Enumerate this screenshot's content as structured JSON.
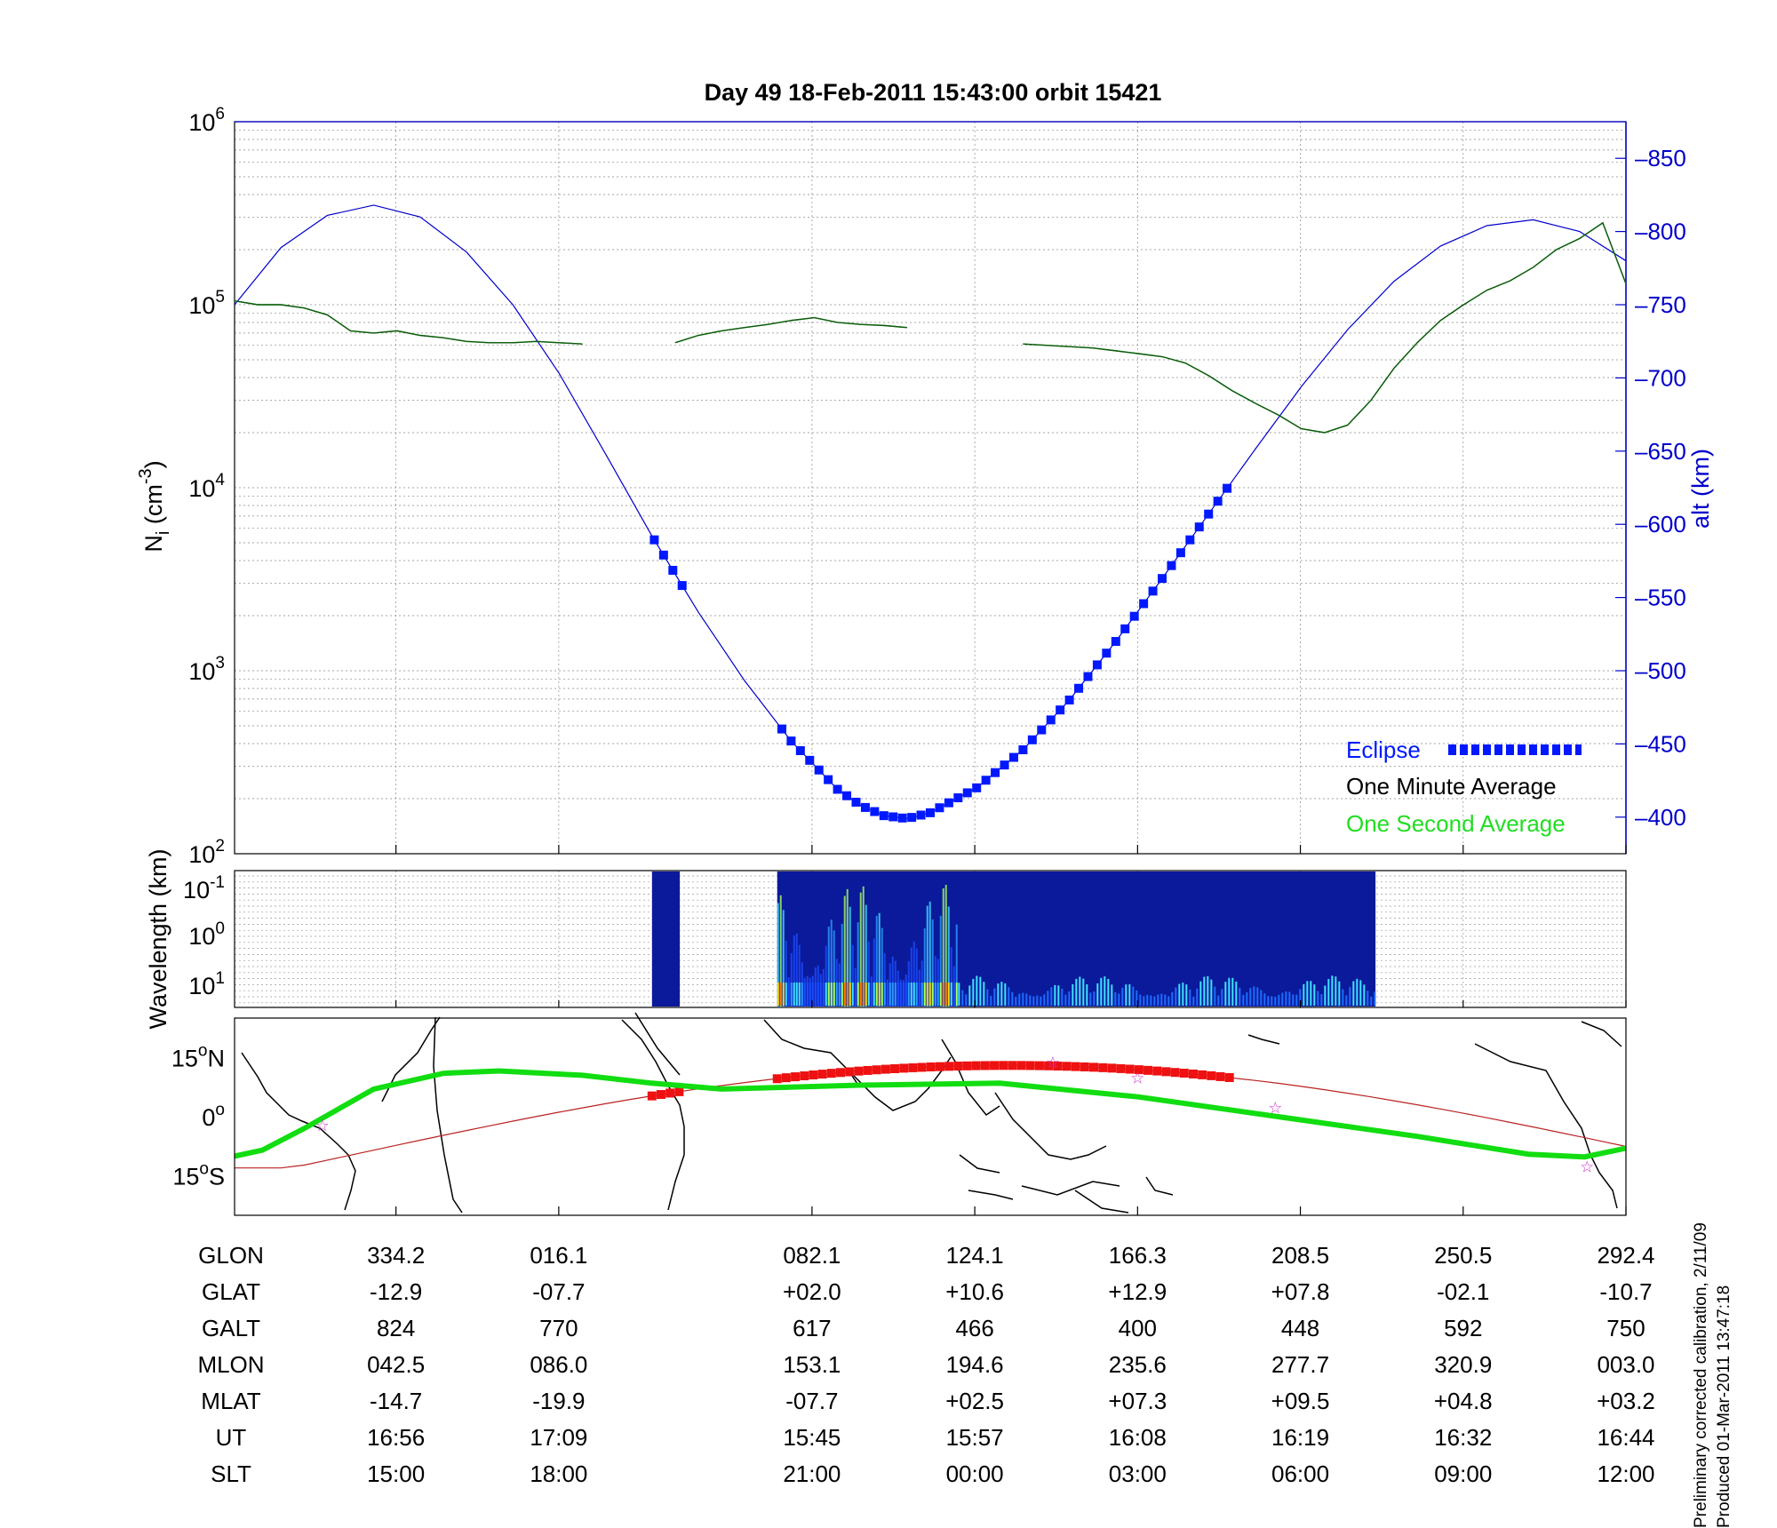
{
  "chart_data": [
    {
      "type": "line",
      "title": "Day 49  18-Feb-2011 15:43:00   orbit 15421",
      "ylabel_base": "N",
      "ylabel_sub": "i",
      "ylabel_unit": "(cm",
      "ylabel_exp": "-3",
      "ylabel_close": ")",
      "y_scale": "log",
      "ylim": [
        100,
        1000000
      ],
      "yticks": [
        {
          "base": "10",
          "exp": "2",
          "value": 100
        },
        {
          "base": "10",
          "exp": "3",
          "value": 1000
        },
        {
          "base": "10",
          "exp": "4",
          "value": 10000
        },
        {
          "base": "10",
          "exp": "5",
          "value": 100000
        },
        {
          "base": "10",
          "exp": "6",
          "value": 1000000
        }
      ],
      "y2label": "alt (km)",
      "y2lim": [
        375,
        875
      ],
      "y2ticks": [
        "400",
        "450",
        "500",
        "550",
        "600",
        "650",
        "700",
        "750",
        "800",
        "850"
      ],
      "y2_color": "#0000cc",
      "grid": true,
      "legend_position": "bottom-right",
      "legend": [
        {
          "label": "Eclipse",
          "color": "#0018ff",
          "style": "thick-dashed"
        },
        {
          "label": "One Minute Average",
          "color": "#000000",
          "style": "text"
        },
        {
          "label": "One Second Average",
          "color": "#22dd22",
          "style": "text"
        }
      ],
      "series": [
        {
          "role": "altitude",
          "color": "#0000cc",
          "x": [
            0,
            20,
            40,
            60,
            80,
            100,
            120,
            140,
            160,
            180,
            200,
            220,
            240,
            260,
            270,
            280,
            290,
            300,
            320,
            340,
            360,
            380,
            400,
            420,
            440,
            460,
            480,
            500,
            520,
            540,
            560,
            580,
            600
          ],
          "y": [
            750,
            789,
            811,
            818,
            810,
            786,
            750,
            703,
            648,
            592,
            540,
            493,
            452,
            419,
            408,
            401,
            399,
            403,
            420,
            446,
            480,
            520,
            563,
            607,
            651,
            694,
            733,
            766,
            790,
            804,
            808,
            800,
            780
          ]
        },
        {
          "role": "density-1min",
          "color": "#000000",
          "x": [
            0,
            10,
            20,
            30,
            40,
            50,
            60,
            70,
            80,
            90,
            100,
            110,
            120,
            130,
            140,
            150,
            155,
            160,
            170,
            180,
            190,
            200,
            210,
            220,
            230,
            240,
            250,
            260,
            270,
            280,
            290,
            300,
            310,
            320,
            330,
            340,
            350,
            360,
            370,
            380,
            390,
            400,
            410,
            420,
            430,
            440,
            450,
            460,
            470,
            480,
            490,
            500,
            510,
            520,
            530,
            540,
            550,
            560,
            570,
            580,
            590,
            600
          ],
          "y": [
            105000,
            100000,
            100000,
            96000,
            88000,
            72000,
            70000,
            72000,
            68000,
            66000,
            63000,
            62000,
            62000,
            63000,
            62000,
            61000,
            null,
            null,
            null,
            null,
            62000,
            68000,
            72000,
            75000,
            78000,
            82000,
            85000,
            80000,
            78000,
            77000,
            75000,
            null,
            null,
            null,
            null,
            61000,
            60000,
            59000,
            58000,
            56000,
            54000,
            52000,
            48000,
            41000,
            34000,
            29000,
            25000,
            21000,
            20000,
            22000,
            30000,
            45000,
            62000,
            82000,
            100000,
            120000,
            135000,
            160000,
            200000,
            230000,
            280000,
            130000
          ]
        }
      ]
    },
    {
      "type": "heatmap",
      "ylabel": "Wavelength (km)",
      "y_scale": "log",
      "yticks": [
        {
          "base": "10",
          "exp": "-1"
        },
        {
          "base": "10",
          "exp": "0"
        },
        {
          "base": "10",
          "exp": "1"
        }
      ],
      "colormap": "jet",
      "data_segments": [
        [
          0.3,
          0.32
        ],
        [
          0.39,
          0.82
        ]
      ],
      "intense_band": [
        0.39,
        0.52
      ]
    },
    {
      "type": "scatter",
      "subtype": "map-ground-track",
      "yticks": [
        {
          "label": "15",
          "deg": "o",
          "hemi": "N"
        },
        {
          "label": "0",
          "deg": "o",
          "hemi": ""
        },
        {
          "label": "15",
          "deg": "o",
          "hemi": "S"
        }
      ],
      "ylim": [
        -25,
        25
      ],
      "series": [
        {
          "role": "satellite-track",
          "color": "#bb2222",
          "eclipse_color": "#ee1111"
        },
        {
          "role": "magnetic-equator",
          "color": "#11dd11"
        },
        {
          "role": "markers",
          "color": "#cc33cc",
          "marker": "star"
        }
      ]
    }
  ],
  "orbit_table": {
    "columns_xfrac": [
      0.116,
      0.233,
      0.415,
      0.532,
      0.649,
      0.766,
      0.883,
      1.0
    ],
    "rows": [
      {
        "name": "GLON",
        "values": [
          "334.2",
          "016.1",
          "082.1",
          "124.1",
          "166.3",
          "208.5",
          "250.5",
          "292.4"
        ]
      },
      {
        "name": "GLAT",
        "values": [
          "-12.9",
          "-07.7",
          "+02.0",
          "+10.6",
          "+12.9",
          "+07.8",
          "-02.1",
          "-10.7"
        ]
      },
      {
        "name": "GALT",
        "values": [
          "824",
          "770",
          "617",
          "466",
          "400",
          "448",
          "592",
          "750"
        ]
      },
      {
        "name": "MLON",
        "values": [
          "042.5",
          "086.0",
          "153.1",
          "194.6",
          "235.6",
          "277.7",
          "320.9",
          "003.0"
        ]
      },
      {
        "name": "MLAT",
        "values": [
          "-14.7",
          "-19.9",
          "-07.7",
          "+02.5",
          "+07.3",
          "+09.5",
          "+04.8",
          "+03.2"
        ]
      },
      {
        "name": "UT",
        "values": [
          "16:56",
          "17:09",
          "15:45",
          "15:57",
          "16:08",
          "16:19",
          "16:32",
          "16:44"
        ]
      },
      {
        "name": "SLT",
        "values": [
          "15:00",
          "18:00",
          "21:00",
          "00:00",
          "03:00",
          "06:00",
          "09:00",
          "12:00"
        ]
      }
    ]
  },
  "footnotes": {
    "line1": "Preliminary corrected calibration, 2/11/09",
    "line2": "Produced 01-Mar-2011 13:47:18"
  }
}
